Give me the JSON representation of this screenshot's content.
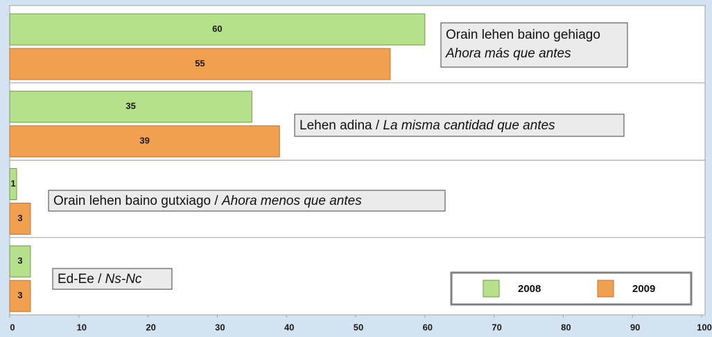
{
  "chart_data": {
    "type": "bar",
    "orientation": "horizontal",
    "categories": [
      [
        "Orain lehen baino gehiago",
        "Ahora más que antes"
      ],
      [
        "Lehen adina /",
        "La misma cantidad que antes"
      ],
      [
        "Orain lehen baino gutxiago /",
        "Ahora menos que antes"
      ],
      [
        "Ed-Ee /",
        "Ns-Nc"
      ]
    ],
    "series": [
      {
        "name": "2008",
        "color": "#b6e08c",
        "values": [
          60,
          35,
          1,
          3
        ]
      },
      {
        "name": "2009",
        "color": "#f0a04e",
        "values": [
          55,
          39,
          3,
          3
        ]
      }
    ],
    "xlim": [
      0,
      100
    ],
    "xticks": [
      0,
      10,
      20,
      30,
      40,
      50,
      60,
      70,
      80,
      90,
      100
    ],
    "legend": "lower right"
  }
}
